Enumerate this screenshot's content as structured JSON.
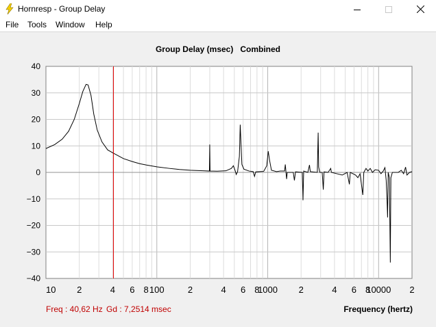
{
  "window": {
    "title": "Hornresp - Group Delay",
    "icon": "lightning-bolt-icon"
  },
  "menu": [
    "File",
    "Tools",
    "Window",
    "Help"
  ],
  "chart_title": "Group Delay (msec)   Combined",
  "status": {
    "freq": "Freq : 40,62 Hz",
    "gd": "Gd : 7,2514 msec",
    "color": "#c00000"
  },
  "chart_data": {
    "type": "line",
    "title": "Group Delay (msec)   Combined",
    "xlabel": "Frequency (hertz)",
    "ylabel": "",
    "xscale": "log",
    "xlim": [
      10,
      20000
    ],
    "ylim": [
      -40,
      40
    ],
    "y_ticks": [
      40,
      30,
      20,
      10,
      0,
      -10,
      -20,
      -30,
      -40
    ],
    "x_tick_labels": [
      {
        "value": 10,
        "label": "10"
      },
      {
        "value": 20,
        "label": "2"
      },
      {
        "value": 40,
        "label": "4"
      },
      {
        "value": 60,
        "label": "6"
      },
      {
        "value": 80,
        "label": "8"
      },
      {
        "value": 100,
        "label": "100"
      },
      {
        "value": 200,
        "label": "2"
      },
      {
        "value": 400,
        "label": "4"
      },
      {
        "value": 600,
        "label": "6"
      },
      {
        "value": 800,
        "label": "8"
      },
      {
        "value": 1000,
        "label": "1000"
      },
      {
        "value": 2000,
        "label": "2"
      },
      {
        "value": 4000,
        "label": "4"
      },
      {
        "value": 6000,
        "label": "6"
      },
      {
        "value": 8000,
        "label": "8"
      },
      {
        "value": 10000,
        "label": "10000"
      },
      {
        "value": 20000,
        "label": "2"
      }
    ],
    "cursor": {
      "x": 40.62,
      "color": "#e00000"
    },
    "line_color": "#000000",
    "grid": true,
    "series": [
      {
        "points": [
          [
            10,
            9
          ],
          [
            12,
            10.5
          ],
          [
            14,
            12.5
          ],
          [
            16,
            15.5
          ],
          [
            18,
            20
          ],
          [
            20,
            26
          ],
          [
            21.5,
            30.5
          ],
          [
            23,
            33.2
          ],
          [
            24,
            33
          ],
          [
            25.5,
            29
          ],
          [
            27,
            22
          ],
          [
            29,
            16
          ],
          [
            32,
            11.5
          ],
          [
            36,
            8.5
          ],
          [
            40.62,
            7.25
          ],
          [
            50,
            5.2
          ],
          [
            60,
            4.1
          ],
          [
            70,
            3.3
          ],
          [
            80,
            2.8
          ],
          [
            100,
            2.1
          ],
          [
            130,
            1.5
          ],
          [
            160,
            1.1
          ],
          [
            200,
            0.8
          ],
          [
            260,
            0.6
          ],
          [
            298,
            0.5
          ],
          [
            300,
            10.5
          ],
          [
            302,
            0.5
          ],
          [
            350,
            0.45
          ],
          [
            420,
            0.6
          ],
          [
            470,
            1.5
          ],
          [
            490,
            2.5
          ],
          [
            510,
            0.5
          ],
          [
            520,
            -0.8
          ],
          [
            535,
            0.3
          ],
          [
            555,
            6
          ],
          [
            565,
            18
          ],
          [
            575,
            10
          ],
          [
            585,
            3
          ],
          [
            610,
            1.2
          ],
          [
            680,
            0.5
          ],
          [
            740,
            0.3
          ],
          [
            760,
            -1.5
          ],
          [
            780,
            0.2
          ],
          [
            920,
            0.4
          ],
          [
            980,
            2.5
          ],
          [
            1010,
            8
          ],
          [
            1040,
            4.5
          ],
          [
            1080,
            0.8
          ],
          [
            1200,
            0.3
          ],
          [
            1300,
            0.5
          ],
          [
            1420,
            0.5
          ],
          [
            1440,
            3
          ],
          [
            1460,
            0.3
          ],
          [
            1480,
            -2.5
          ],
          [
            1500,
            0
          ],
          [
            1700,
            0
          ],
          [
            1740,
            -3
          ],
          [
            1780,
            0.2
          ],
          [
            2050,
            0
          ],
          [
            2080,
            -10.5
          ],
          [
            2110,
            0.5
          ],
          [
            2300,
            0
          ],
          [
            2380,
            2.8
          ],
          [
            2420,
            0.3
          ],
          [
            2800,
            0
          ],
          [
            2850,
            15
          ],
          [
            2880,
            2
          ],
          [
            2950,
            0
          ],
          [
            3100,
            0
          ],
          [
            3170,
            -6.5
          ],
          [
            3220,
            0.2
          ],
          [
            3500,
            0
          ],
          [
            3700,
            1.5
          ],
          [
            3750,
            0
          ],
          [
            4200,
            -0.5
          ],
          [
            4700,
            -1
          ],
          [
            5200,
            0
          ],
          [
            5450,
            -4.5
          ],
          [
            5550,
            0
          ],
          [
            6200,
            -1
          ],
          [
            6500,
            -2
          ],
          [
            6800,
            -0.5
          ],
          [
            7200,
            -8.5
          ],
          [
            7350,
            0
          ],
          [
            7700,
            1.5
          ],
          [
            8000,
            0.5
          ],
          [
            8400,
            1.5
          ],
          [
            8800,
            0
          ],
          [
            9300,
            1
          ],
          [
            10000,
            0.8
          ],
          [
            10500,
            -0.5
          ],
          [
            11000,
            0.5
          ],
          [
            11400,
            1.8
          ],
          [
            11700,
            -3
          ],
          [
            11900,
            -10
          ],
          [
            12050,
            -17
          ],
          [
            12200,
            0
          ],
          [
            12500,
            -2
          ],
          [
            12750,
            -34
          ],
          [
            12900,
            -2
          ],
          [
            13300,
            0
          ],
          [
            15000,
            0
          ],
          [
            16000,
            0.8
          ],
          [
            16800,
            -0.5
          ],
          [
            17500,
            2
          ],
          [
            18000,
            -1
          ],
          [
            19000,
            0
          ],
          [
            20000,
            0.3
          ]
        ]
      }
    ]
  }
}
